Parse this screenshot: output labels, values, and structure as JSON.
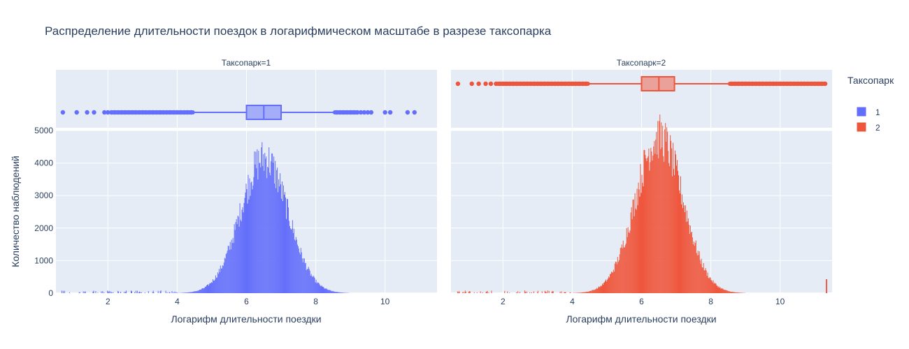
{
  "chart_data": {
    "type": "histogram",
    "title": "Распределение длительности поездок в логарифмическом масштабе в разрезе таксопарка",
    "xlabel": "Логарифм длительности поездки",
    "ylabel": "Количество наблюдений",
    "ylim": [
      0,
      5000
    ],
    "xlim": [
      0.5,
      11.5
    ],
    "x_ticks": [
      2,
      4,
      6,
      8,
      10
    ],
    "y_ticks": [
      0,
      1000,
      2000,
      3000,
      4000,
      5000
    ],
    "legend": {
      "title": "Таксопарк",
      "placement": "right"
    },
    "facets": [
      {
        "label": "Таксопарк=1",
        "name": "1",
        "color": "#636efa",
        "box": {
          "lower_fence": 4.5,
          "q1": 6.0,
          "median": 6.5,
          "q3": 7.0,
          "upper_fence": 8.5
        },
        "outliers_low": [
          0.7,
          1.1,
          1.4,
          1.6,
          1.9,
          2.0,
          2.1,
          2.2,
          2.3,
          2.4,
          2.5,
          2.6,
          2.7,
          2.8,
          2.9,
          3.0,
          3.1,
          3.2,
          3.3,
          3.4,
          3.5,
          3.6,
          3.7,
          3.8,
          3.9,
          4.0,
          4.1,
          4.2,
          4.3,
          4.4
        ],
        "outliers_high": [
          8.6,
          8.7,
          8.8,
          8.9,
          9.0,
          9.1,
          9.2,
          9.3,
          9.4,
          9.5,
          9.6,
          10.0,
          10.15,
          10.65,
          10.85
        ],
        "hist": {
          "peak_x": 6.5,
          "peak_y": 4150,
          "sd": 0.68
        }
      },
      {
        "label": "Таксопарк=2",
        "name": "2",
        "color": "#ef553b",
        "box": {
          "lower_fence": 4.5,
          "q1": 6.0,
          "median": 6.5,
          "q3": 6.95,
          "upper_fence": 8.5
        },
        "outliers_low": [
          0.7,
          1.1,
          1.3,
          1.5,
          1.65,
          1.8,
          1.9,
          2.0,
          2.1,
          2.2,
          2.3,
          2.4,
          2.5,
          2.6,
          2.7,
          2.8,
          2.9,
          3.0,
          3.1,
          3.2,
          3.3,
          3.4,
          3.5,
          3.6,
          3.7,
          3.8,
          3.9,
          4.0,
          4.1,
          4.2,
          4.3,
          4.4
        ],
        "outliers_high": [
          8.6,
          8.7,
          8.8,
          8.9,
          9.0,
          9.1,
          9.2,
          9.3,
          9.4,
          9.5,
          9.6,
          9.7,
          9.8,
          9.9,
          10.0,
          10.1,
          10.2,
          10.3,
          10.4,
          10.5,
          10.6,
          10.7,
          10.8,
          10.9,
          11.0,
          11.1,
          11.2,
          11.3
        ],
        "hist": {
          "peak_x": 6.5,
          "peak_y": 4800,
          "sd": 0.68,
          "spike_x": 11.32,
          "spike_y": 430
        }
      }
    ]
  }
}
